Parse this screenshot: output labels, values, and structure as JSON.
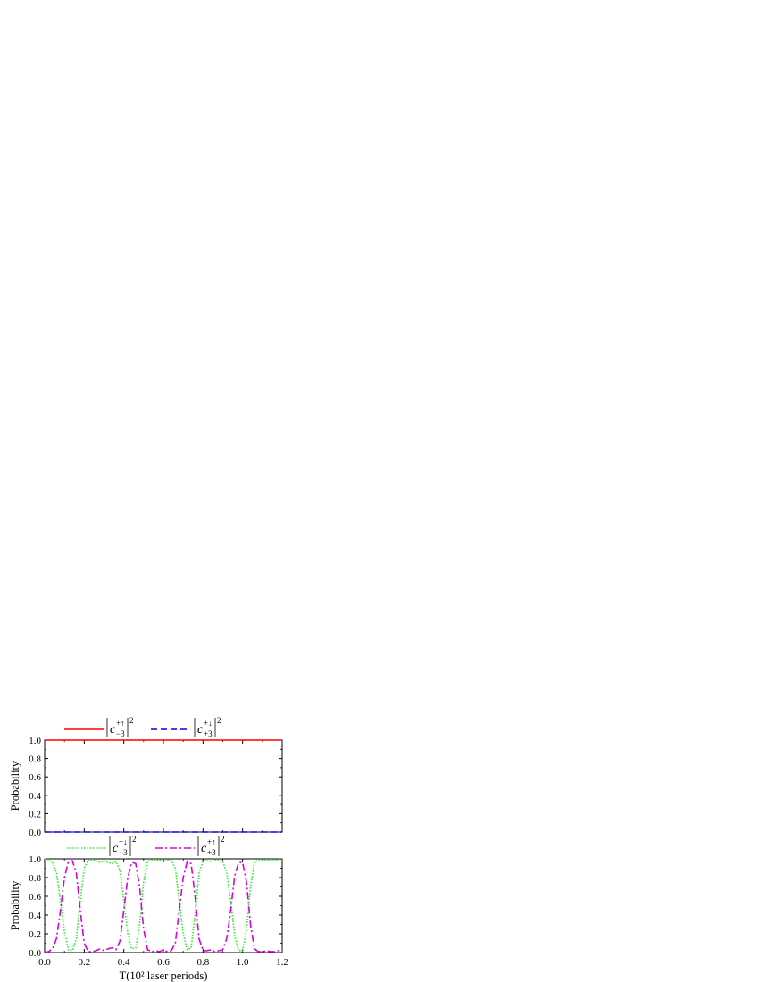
{
  "chart_data": [
    {
      "type": "line",
      "ylabel": "Probability",
      "xlabel": "",
      "xlim": [
        0.0,
        1.2
      ],
      "ylim": [
        0.0,
        1.0
      ],
      "x_ticks": [
        "0.0",
        "0.2",
        "0.4",
        "0.6",
        "0.8",
        "1.0",
        "1.2"
      ],
      "y_ticks": [
        "0.0",
        "0.2",
        "0.4",
        "0.6",
        "0.8",
        "1.0"
      ],
      "grid": false,
      "legend_placement": "above",
      "series": [
        {
          "key": "s1",
          "label": {
            "sub": "−3",
            "sup": "+↑",
            "exp": "2"
          },
          "color": "#ff0000",
          "style": "solid",
          "x": [
            0.0,
            0.3,
            0.6,
            0.9,
            1.2
          ],
          "y": [
            1.0,
            1.0,
            1.0,
            1.0,
            1.0
          ]
        },
        {
          "key": "s2",
          "label": {
            "sub": "+3",
            "sup": "+↓",
            "exp": "2"
          },
          "color": "#0000ee",
          "style": "dashed",
          "x": [
            0.0,
            0.3,
            0.6,
            0.9,
            1.2
          ],
          "y": [
            0.0,
            0.0,
            0.0,
            0.0,
            0.0
          ]
        }
      ]
    },
    {
      "type": "line",
      "ylabel": "Probability",
      "xlabel": "T(10² laser periods)",
      "xlim": [
        0.0,
        1.2
      ],
      "ylim": [
        0.0,
        1.0
      ],
      "x_ticks": [
        "0.0",
        "0.2",
        "0.4",
        "0.6",
        "0.8",
        "1.0",
        "1.2"
      ],
      "y_ticks": [
        "0.0",
        "0.2",
        "0.4",
        "0.6",
        "0.8",
        "1.0"
      ],
      "grid": false,
      "legend_placement": "above",
      "series": [
        {
          "key": "s3",
          "label": {
            "sub": "−3",
            "sup": "+↓",
            "exp": "2"
          },
          "color": "#33ee33",
          "style": "dotted",
          "x": [
            0.0,
            0.02,
            0.04,
            0.06,
            0.08,
            0.1,
            0.12,
            0.14,
            0.16,
            0.18,
            0.2,
            0.22,
            0.24,
            0.26,
            0.28,
            0.3,
            0.32,
            0.34,
            0.36,
            0.38,
            0.4,
            0.42,
            0.44,
            0.46,
            0.48,
            0.5,
            0.52,
            0.54,
            0.56,
            0.58,
            0.6,
            0.62,
            0.64,
            0.66,
            0.68,
            0.7,
            0.72,
            0.74,
            0.76,
            0.78,
            0.8,
            0.82,
            0.84,
            0.86,
            0.88,
            0.9,
            0.92,
            0.94,
            0.96,
            0.98,
            1.0,
            1.02,
            1.04,
            1.06,
            1.08,
            1.1,
            1.12,
            1.14,
            1.16,
            1.18,
            1.2
          ],
          "y": [
            1.0,
            0.99,
            0.96,
            0.85,
            0.55,
            0.22,
            0.03,
            0.02,
            0.15,
            0.55,
            0.9,
            0.99,
            0.99,
            0.98,
            0.96,
            0.98,
            0.96,
            0.95,
            0.97,
            0.88,
            0.55,
            0.2,
            0.04,
            0.05,
            0.3,
            0.75,
            0.97,
            0.99,
            0.98,
            0.99,
            0.97,
            0.99,
            0.98,
            0.9,
            0.55,
            0.2,
            0.03,
            0.05,
            0.4,
            0.85,
            0.98,
            0.98,
            0.97,
            0.99,
            0.98,
            0.97,
            0.85,
            0.55,
            0.18,
            0.02,
            0.02,
            0.25,
            0.7,
            0.96,
            0.99,
            0.99,
            0.98,
            0.99,
            0.99,
            0.98,
            0.99
          ]
        },
        {
          "key": "s4",
          "label": {
            "sub": "+3",
            "sup": "+↑",
            "exp": "2"
          },
          "color": "#dd00dd",
          "style": "dashdot",
          "x": [
            0.0,
            0.02,
            0.04,
            0.06,
            0.08,
            0.1,
            0.12,
            0.14,
            0.16,
            0.18,
            0.2,
            0.22,
            0.24,
            0.26,
            0.28,
            0.3,
            0.32,
            0.34,
            0.36,
            0.38,
            0.4,
            0.42,
            0.44,
            0.46,
            0.48,
            0.5,
            0.52,
            0.54,
            0.56,
            0.58,
            0.6,
            0.62,
            0.64,
            0.66,
            0.68,
            0.7,
            0.72,
            0.74,
            0.76,
            0.78,
            0.8,
            0.82,
            0.84,
            0.86,
            0.88,
            0.9,
            0.92,
            0.94,
            0.96,
            0.98,
            1.0,
            1.02,
            1.04,
            1.06,
            1.08,
            1.1,
            1.12,
            1.14,
            1.16,
            1.18,
            1.2
          ],
          "y": [
            0.0,
            0.01,
            0.04,
            0.15,
            0.45,
            0.8,
            0.97,
            0.98,
            0.85,
            0.45,
            0.1,
            0.01,
            0.01,
            0.02,
            0.04,
            0.02,
            0.04,
            0.05,
            0.03,
            0.12,
            0.45,
            0.8,
            0.96,
            0.95,
            0.7,
            0.25,
            0.03,
            0.01,
            0.02,
            0.01,
            0.03,
            0.01,
            0.02,
            0.1,
            0.45,
            0.8,
            0.97,
            0.95,
            0.6,
            0.15,
            0.02,
            0.02,
            0.03,
            0.01,
            0.02,
            0.03,
            0.15,
            0.45,
            0.82,
            0.96,
            0.96,
            0.75,
            0.3,
            0.04,
            0.01,
            0.01,
            0.02,
            0.01,
            0.01,
            0.02,
            0.01
          ]
        }
      ]
    }
  ]
}
